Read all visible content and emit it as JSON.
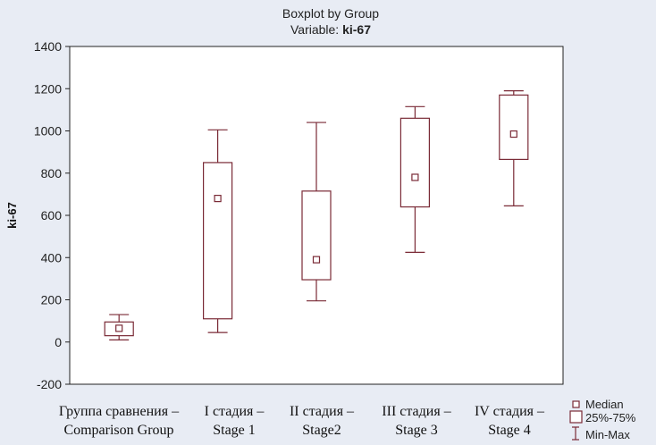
{
  "colors": {
    "page_background": "#e8ecf4",
    "plot_background": "#ffffff",
    "box_stroke": "#7a2a36",
    "axis": "#222222"
  },
  "chart_data": {
    "type": "boxplot",
    "title": "Boxplot by Group",
    "subtitle_prefix": "Variable: ",
    "subtitle_variable": "ki-67",
    "ylabel": "ki-67",
    "xlabel": "",
    "ylim": [
      -200,
      1400
    ],
    "yticks": [
      -200,
      0,
      200,
      400,
      600,
      800,
      1000,
      1200,
      1400
    ],
    "grid": false,
    "legend_position": "bottom-right",
    "legend": [
      "Median",
      "25%-75%",
      "Min-Max"
    ],
    "categories": [
      {
        "line1": "Группа сравнения –",
        "line2": "Comparison Group"
      },
      {
        "line1": "I стадия –",
        "line2": "Stage 1"
      },
      {
        "line1": "II стадия –",
        "line2": "Stage2"
      },
      {
        "line1": "III стадия –",
        "line2": "Stage 3"
      },
      {
        "line1": "IV стадия –",
        "line2": "Stage 4"
      }
    ],
    "boxes": [
      {
        "min": 10,
        "q1": 30,
        "median": 65,
        "q3": 95,
        "max": 130
      },
      {
        "min": 45,
        "q1": 110,
        "median": 680,
        "q3": 850,
        "max": 1005
      },
      {
        "min": 195,
        "q1": 295,
        "median": 390,
        "q3": 715,
        "max": 1040
      },
      {
        "min": 425,
        "q1": 640,
        "median": 780,
        "q3": 1060,
        "max": 1115
      },
      {
        "min": 645,
        "q1": 865,
        "median": 985,
        "q3": 1170,
        "max": 1190
      }
    ]
  }
}
